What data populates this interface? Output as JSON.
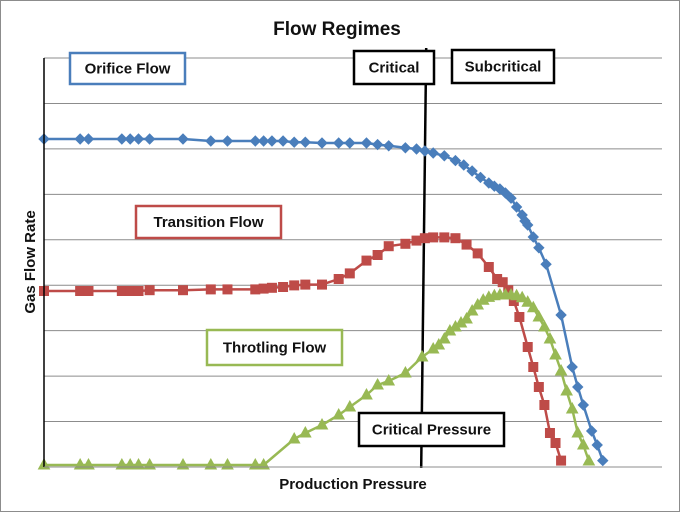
{
  "chart_data": {
    "type": "line",
    "title": "Flow Regimes",
    "xlabel": "Production Pressure",
    "ylabel": "Gas Flow Rate",
    "xlim": [
      0,
      100
    ],
    "ylim": [
      0,
      100
    ],
    "grid": {
      "y": true,
      "x": false
    },
    "legend": "none",
    "annotations": [
      {
        "key": "orifice",
        "text": "Orifice Flow",
        "color": "#4a7ebb"
      },
      {
        "key": "transition",
        "text": "Transition Flow",
        "color": "#be4b48"
      },
      {
        "key": "throttling",
        "text": "Throtling Flow",
        "color": "#98b954"
      },
      {
        "key": "critical",
        "text": "Critical",
        "color": "#000000"
      },
      {
        "key": "subcritical",
        "text": "Subcritical",
        "color": "#000000"
      },
      {
        "key": "critical_pressure",
        "text": "Critical Pressure",
        "color": "#000000"
      }
    ],
    "reference_line": {
      "type": "vertical",
      "x": 68.2
    },
    "series": [
      {
        "key": "orifice",
        "color": "#4a7ebb",
        "marker": "diamond",
        "points": [
          [
            0,
            82
          ],
          [
            6.5,
            82
          ],
          [
            8,
            82
          ],
          [
            14,
            82
          ],
          [
            15.5,
            82
          ],
          [
            17,
            82
          ],
          [
            19,
            82
          ],
          [
            25,
            82
          ],
          [
            30,
            81.5
          ],
          [
            33,
            81.5
          ],
          [
            38,
            81.5
          ],
          [
            39.5,
            81.5
          ],
          [
            41,
            81.5
          ],
          [
            43,
            81.5
          ],
          [
            45,
            81.2
          ],
          [
            47,
            81.2
          ],
          [
            50,
            81
          ],
          [
            53,
            81
          ],
          [
            55,
            81
          ],
          [
            58,
            81
          ],
          [
            60,
            80.6
          ],
          [
            62,
            80.3
          ],
          [
            65,
            79.8
          ],
          [
            67,
            79.5
          ],
          [
            68.5,
            79
          ],
          [
            70,
            78.5
          ],
          [
            72,
            77.8
          ],
          [
            74,
            76.6
          ],
          [
            75.5,
            75.5
          ],
          [
            77,
            74
          ],
          [
            78.5,
            72.4
          ],
          [
            80,
            71
          ],
          [
            81,
            70.2
          ],
          [
            82,
            69.5
          ],
          [
            83,
            68.5
          ],
          [
            84,
            67.2
          ],
          [
            85,
            65
          ],
          [
            86,
            63
          ],
          [
            86.5,
            61.5
          ],
          [
            87,
            60.5
          ],
          [
            88,
            57.5
          ],
          [
            89,
            54.8
          ],
          [
            90.3,
            50.7
          ],
          [
            93,
            38
          ],
          [
            95,
            25
          ],
          [
            96,
            20
          ],
          [
            97,
            15.5
          ],
          [
            98.5,
            9
          ],
          [
            99.5,
            5.5
          ],
          [
            100.5,
            1.6
          ]
        ]
      },
      {
        "key": "transition",
        "color": "#be4b48",
        "marker": "square",
        "points": [
          [
            0,
            44
          ],
          [
            6.5,
            44
          ],
          [
            8,
            44
          ],
          [
            14,
            44
          ],
          [
            15.5,
            44
          ],
          [
            17,
            44
          ],
          [
            19,
            44.2
          ],
          [
            25,
            44.2
          ],
          [
            30,
            44.4
          ],
          [
            33,
            44.4
          ],
          [
            38,
            44.4
          ],
          [
            39.5,
            44.6
          ],
          [
            41,
            44.8
          ],
          [
            43,
            45
          ],
          [
            45,
            45.4
          ],
          [
            47,
            45.6
          ],
          [
            50,
            45.6
          ],
          [
            53,
            47
          ],
          [
            55,
            48.4
          ],
          [
            58,
            51.6
          ],
          [
            60,
            53
          ],
          [
            62,
            55.2
          ],
          [
            65,
            55.8
          ],
          [
            67,
            56.6
          ],
          [
            68.5,
            57.2
          ],
          [
            70,
            57.4
          ],
          [
            72,
            57.4
          ],
          [
            74,
            57.2
          ],
          [
            76,
            55.6
          ],
          [
            78,
            53.4
          ],
          [
            80,
            50
          ],
          [
            81.5,
            47
          ],
          [
            82.5,
            46.2
          ],
          [
            83.5,
            44.2
          ],
          [
            84.5,
            41.5
          ],
          [
            85.5,
            37.5
          ],
          [
            87,
            30
          ],
          [
            88,
            25
          ],
          [
            89,
            20
          ],
          [
            90,
            15.5
          ],
          [
            91,
            8.5
          ],
          [
            92,
            6
          ],
          [
            93,
            1.6
          ]
        ]
      },
      {
        "key": "throttling",
        "color": "#98b954",
        "marker": "triangle",
        "points": [
          [
            0,
            0.5
          ],
          [
            6.5,
            0.5
          ],
          [
            8,
            0.5
          ],
          [
            14,
            0.5
          ],
          [
            15.5,
            0.5
          ],
          [
            17,
            0.5
          ],
          [
            19,
            0.5
          ],
          [
            25,
            0.5
          ],
          [
            30,
            0.5
          ],
          [
            33,
            0.5
          ],
          [
            38,
            0.5
          ],
          [
            39.5,
            0.5
          ],
          [
            45,
            7
          ],
          [
            47,
            8.5
          ],
          [
            50,
            10.5
          ],
          [
            53,
            13
          ],
          [
            55,
            15
          ],
          [
            58,
            18
          ],
          [
            60,
            20.5
          ],
          [
            62,
            21.5
          ],
          [
            65,
            23.5
          ],
          [
            68,
            27.5
          ],
          [
            70,
            29.5
          ],
          [
            71,
            30.5
          ],
          [
            72,
            32
          ],
          [
            73,
            34
          ],
          [
            74,
            35
          ],
          [
            75,
            36
          ],
          [
            76,
            37
          ],
          [
            77,
            39
          ],
          [
            78,
            40.5
          ],
          [
            79,
            41.7
          ],
          [
            80,
            42.4
          ],
          [
            81,
            42.8
          ],
          [
            82,
            43
          ],
          [
            83,
            43
          ],
          [
            84,
            43
          ],
          [
            85,
            42.8
          ],
          [
            86,
            42.3
          ],
          [
            87,
            41.2
          ],
          [
            88,
            39.8
          ],
          [
            89,
            37.5
          ],
          [
            90,
            35
          ],
          [
            91,
            32
          ],
          [
            92,
            28
          ],
          [
            93,
            24
          ],
          [
            94,
            19
          ],
          [
            95,
            14.5
          ],
          [
            96,
            8.5
          ],
          [
            97,
            5.5
          ],
          [
            98,
            1.5
          ]
        ]
      }
    ]
  }
}
